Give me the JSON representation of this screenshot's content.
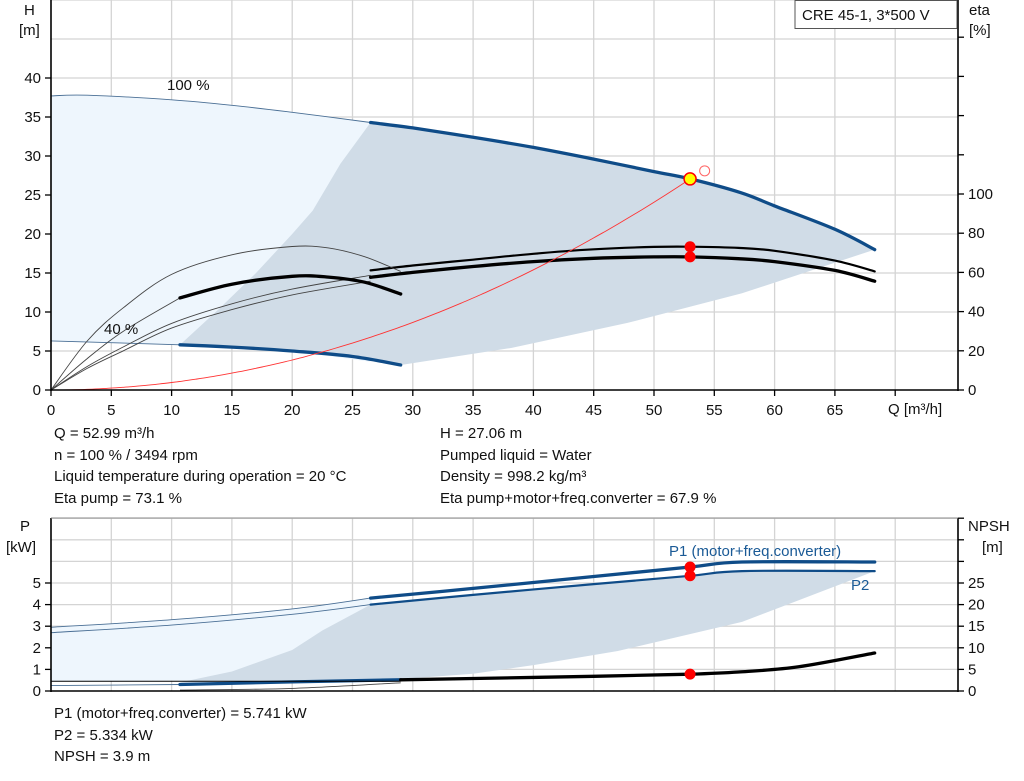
{
  "title_box": "CRE 45-1, 3*500 V",
  "colors": {
    "curve_blue": "#0f4c88",
    "light_area": "#eef6fd",
    "dark_area": "#d0dce7",
    "system": "#ff3333",
    "point": "#ff0000",
    "point_fill": "#ffff00",
    "grid": "#d4d4d4"
  },
  "info_top_left": [
    "Q = 52.99 m³/h",
    "n = 100 % / 3494 rpm",
    "Liquid temperature during operation = 20 °C",
    "Eta pump = 73.1 %"
  ],
  "info_top_right": [
    "H = 27.06 m",
    "Pumped liquid = Water",
    "Density = 998.2 kg/m³",
    "Eta pump+motor+freq.converter = 67.9 %"
  ],
  "info_bottom": [
    "P1 (motor+freq.converter) = 5.741 kW",
    "P2 = 5.334 kW",
    "NPSH = 3.9 m"
  ],
  "chart_data": [
    {
      "type": "line",
      "xlabel": "Q [m³/h]",
      "ylabel_left": [
        "H",
        "[m]"
      ],
      "ylabel_right": [
        "eta",
        "[%]"
      ],
      "xlim": [
        0,
        75
      ],
      "ylim_left": [
        0,
        50
      ],
      "ylim_right": [
        0,
        200
      ],
      "xticks": [
        0,
        5,
        10,
        15,
        20,
        25,
        30,
        35,
        40,
        45,
        50,
        55,
        60,
        65
      ],
      "yticks_left": [
        0,
        5,
        10,
        15,
        20,
        25,
        30,
        35,
        40
      ],
      "yticks_right": [
        0,
        20,
        40,
        60,
        80,
        100
      ],
      "grid": true,
      "annotations": {
        "speed_max": "100 %",
        "speed_min": "40 %"
      },
      "series": [
        {
          "id": "head-100",
          "axis": "left",
          "thin": [
            [
              0,
              37.7
            ],
            [
              3,
              37.8
            ],
            [
              10,
              37.2
            ],
            [
              15,
              36.5
            ],
            [
              20,
              35.6
            ],
            [
              26.5,
              34.3
            ]
          ],
          "thick": [
            [
              26.5,
              34.3
            ],
            [
              30,
              33.6
            ],
            [
              35,
              32.4
            ],
            [
              40,
              31.1
            ],
            [
              45,
              29.6
            ],
            [
              50,
              28
            ],
            [
              53,
              27.06
            ],
            [
              57.2,
              25.3
            ],
            [
              60,
              23.6
            ],
            [
              65,
              20.6
            ],
            [
              68.3,
              18
            ]
          ]
        },
        {
          "id": "head-40",
          "axis": "left",
          "thin": [
            [
              0,
              6.3
            ],
            [
              10.7,
              5.8
            ]
          ],
          "thick": [
            [
              10.7,
              5.8
            ],
            [
              15,
              5.5
            ],
            [
              20,
              5.0
            ],
            [
              25,
              4.3
            ],
            [
              29,
              3.2
            ]
          ]
        },
        {
          "id": "eta-pump",
          "axis": "right",
          "thin": [
            [
              0,
              0
            ],
            [
              3,
              12
            ],
            [
              6,
              22
            ],
            [
              10,
              34
            ],
            [
              15,
              44
            ],
            [
              20,
              51.5
            ],
            [
              26.5,
              58.5
            ]
          ],
          "thick": [
            [
              26.5,
              61
            ],
            [
              30,
              63.5
            ],
            [
              35,
              66.5
            ],
            [
              40,
              69.5
            ],
            [
              45,
              71.8
            ],
            [
              50,
              73
            ],
            [
              53,
              73.1
            ],
            [
              57,
              72.5
            ],
            [
              60,
              71
            ],
            [
              65,
              66
            ],
            [
              68.3,
              60.5
            ]
          ]
        },
        {
          "id": "eta-total",
          "axis": "right",
          "thin": [
            [
              0,
              0
            ],
            [
              3,
              11
            ],
            [
              6,
              20
            ],
            [
              10,
              31.6
            ],
            [
              15,
              41
            ],
            [
              20,
              48.5
            ],
            [
              26.5,
              55.5
            ]
          ],
          "thick": [
            [
              26.5,
              57.5
            ],
            [
              30,
              60
            ],
            [
              35,
              63
            ],
            [
              40,
              65.5
            ],
            [
              45,
              67.2
            ],
            [
              50,
              67.9
            ],
            [
              53,
              67.9
            ],
            [
              57,
              67
            ],
            [
              60,
              65.5
            ],
            [
              65,
              61
            ],
            [
              68.3,
              55.5
            ]
          ]
        },
        {
          "id": "eta-pump-40",
          "axis": "right",
          "thin": [
            [
              0,
              0
            ],
            [
              3,
              25
            ],
            [
              6,
              42
            ],
            [
              10,
              59
            ],
            [
              15,
              69
            ],
            [
              20,
              73.2
            ],
            [
              23,
              72.5
            ],
            [
              26,
              68
            ],
            [
              29,
              60.5
            ]
          ],
          "thick": []
        },
        {
          "id": "eta-total-40",
          "axis": "right",
          "thin": [
            [
              0,
              0
            ],
            [
              3,
              16
            ],
            [
              6,
              30
            ],
            [
              10.7,
              47
            ]
          ],
          "thick": [
            [
              10.7,
              47
            ],
            [
              15,
              54
            ],
            [
              20,
              58
            ],
            [
              23,
              57.6
            ],
            [
              26,
              55
            ],
            [
              29,
              49
            ]
          ]
        }
      ],
      "system_curve": {
        "k": 0.00963,
        "q_max": 53
      },
      "envelope_light": [
        [
          0,
          37.7
        ],
        [
          3,
          37.8
        ],
        [
          10,
          37.2
        ],
        [
          15,
          36.5
        ],
        [
          20,
          35.6
        ],
        [
          26.5,
          34.3
        ],
        [
          26.5,
          3.6
        ],
        [
          20,
          5.0
        ],
        [
          15,
          5.5
        ],
        [
          10.7,
          5.8
        ],
        [
          0,
          6.3
        ]
      ],
      "envelope_dark": [
        [
          26.5,
          34.3
        ],
        [
          30,
          33.6
        ],
        [
          35,
          32.4
        ],
        [
          40,
          31.1
        ],
        [
          45,
          29.6
        ],
        [
          50,
          28
        ],
        [
          53,
          27.06
        ],
        [
          57.2,
          25.3
        ],
        [
          60,
          23.6
        ],
        [
          65,
          20.6
        ],
        [
          68.3,
          18
        ],
        [
          57.3,
          12.4
        ],
        [
          47.8,
          8.6
        ],
        [
          38.2,
          5.4
        ],
        [
          29,
          3.2
        ],
        [
          25,
          4.3
        ],
        [
          20,
          5.0
        ],
        [
          15,
          5.5
        ],
        [
          10.7,
          5.8
        ],
        [
          14,
          10.5
        ],
        [
          17,
          15
        ],
        [
          20,
          20
        ],
        [
          21.7,
          23
        ],
        [
          24,
          29
        ]
      ],
      "duty_point": {
        "Q": 52.99,
        "H": 27.06,
        "eta_pump": 73.1,
        "eta_total": 67.9
      },
      "requested_point": {
        "Q": 54.2,
        "H": 28.1
      }
    },
    {
      "type": "line",
      "ylabel_left": [
        "P",
        "[kW]"
      ],
      "ylabel_right": [
        "NPSH",
        "[m]"
      ],
      "xlim": [
        0,
        75
      ],
      "ylim_left": [
        0,
        8
      ],
      "ylim_right": [
        0,
        40
      ],
      "yticks_left": [
        0,
        1,
        2,
        3,
        4,
        5
      ],
      "yticks_right": [
        0,
        5,
        10,
        15,
        20,
        25
      ],
      "grid": true,
      "series": [
        {
          "id": "p1",
          "name": "P1 (motor+freq.converter)",
          "axis": "left",
          "thin": [
            [
              0,
              2.95
            ],
            [
              10,
              3.3
            ],
            [
              20,
              3.8
            ],
            [
              26.5,
              4.3
            ]
          ],
          "thick": [
            [
              26.5,
              4.3
            ],
            [
              35,
              4.75
            ],
            [
              45,
              5.3
            ],
            [
              53,
              5.741
            ],
            [
              57.3,
              5.97
            ],
            [
              68.3,
              5.97
            ]
          ]
        },
        {
          "id": "p2",
          "name": "P2",
          "axis": "left",
          "thin": [
            [
              0,
              2.7
            ],
            [
              10,
              3.05
            ],
            [
              20,
              3.55
            ],
            [
              26.5,
              4.0
            ]
          ],
          "thick": [
            [
              26.5,
              4.0
            ],
            [
              35,
              4.45
            ],
            [
              45,
              4.95
            ],
            [
              53,
              5.334
            ],
            [
              57.3,
              5.55
            ],
            [
              68.3,
              5.55
            ]
          ]
        },
        {
          "id": "p-40",
          "axis": "left",
          "thin": [
            [
              0,
              0.25
            ],
            [
              10.7,
              0.3
            ]
          ],
          "thick": [
            [
              10.7,
              0.3
            ],
            [
              20,
              0.42
            ],
            [
              29,
              0.52
            ]
          ]
        },
        {
          "id": "npsh",
          "axis": "right",
          "thin": [
            [
              10.7,
              0.2
            ],
            [
              20,
              0.6
            ],
            [
              29,
              1.9
            ]
          ],
          "thick": [
            [
              29,
              2.6
            ],
            [
              35,
              2.9
            ],
            [
              45,
              3.4
            ],
            [
              53,
              3.9
            ],
            [
              57,
              4.4
            ],
            [
              62,
              5.6
            ],
            [
              68.3,
              8.8
            ]
          ]
        }
      ],
      "envelope_light": [
        [
          0,
          2.95
        ],
        [
          10,
          3.3
        ],
        [
          20,
          3.8
        ],
        [
          26.5,
          4.3
        ],
        [
          29,
          0.52
        ],
        [
          0,
          0.45
        ]
      ],
      "envelope_dark": [
        [
          26.5,
          4.0
        ],
        [
          35,
          4.45
        ],
        [
          45,
          4.95
        ],
        [
          53,
          5.334
        ],
        [
          57.3,
          5.55
        ],
        [
          68.3,
          5.55
        ],
        [
          62,
          4.2
        ],
        [
          57.3,
          3.2
        ],
        [
          47,
          1.85
        ],
        [
          40,
          1.2
        ],
        [
          35,
          0.8
        ],
        [
          29,
          0.55
        ],
        [
          10.7,
          0.4
        ],
        [
          15,
          0.9
        ],
        [
          20,
          1.9
        ],
        [
          22.5,
          2.8
        ]
      ],
      "duty_point": {
        "P1": 5.741,
        "P2": 5.334,
        "NPSH": 3.9,
        "Q": 52.99
      }
    }
  ]
}
